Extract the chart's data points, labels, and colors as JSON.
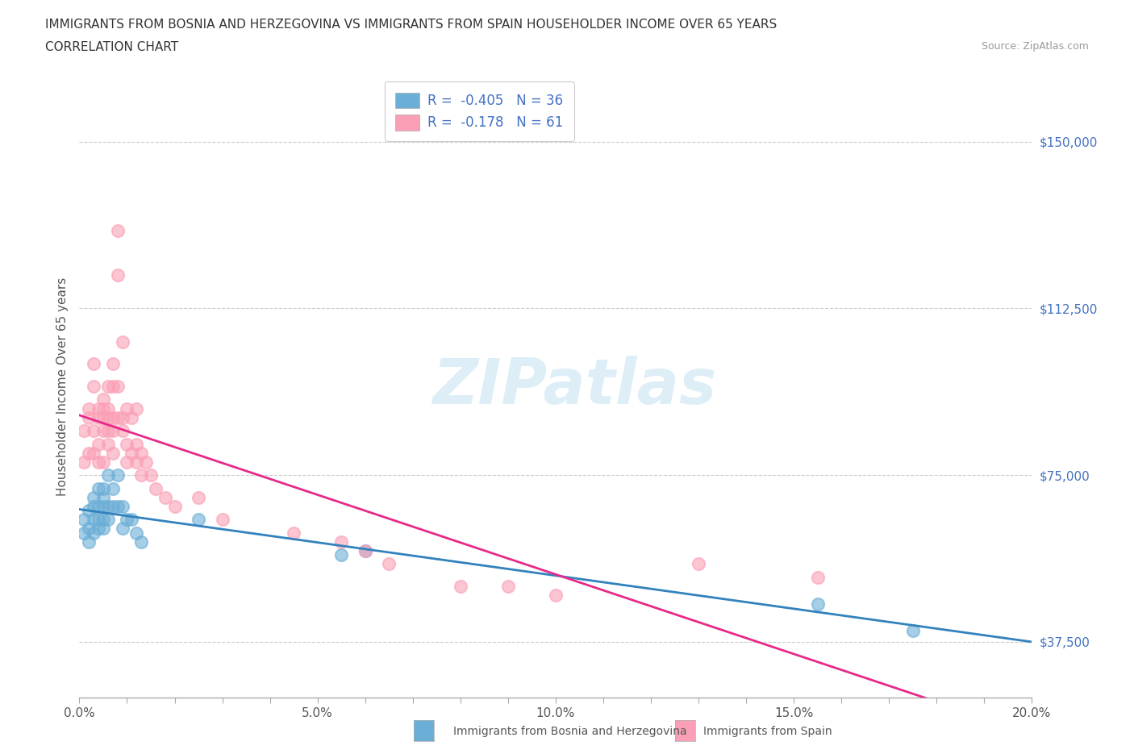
{
  "title_line1": "IMMIGRANTS FROM BOSNIA AND HERZEGOVINA VS IMMIGRANTS FROM SPAIN HOUSEHOLDER INCOME OVER 65 YEARS",
  "title_line2": "CORRELATION CHART",
  "source_text": "Source: ZipAtlas.com",
  "ylabel": "Householder Income Over 65 years",
  "xlim": [
    0.0,
    0.2
  ],
  "ylim": [
    25000,
    165000
  ],
  "xtick_labels": [
    "0.0%",
    "",
    "",
    "",
    "",
    "5.0%",
    "",
    "",
    "",
    "",
    "10.0%",
    "",
    "",
    "",
    "",
    "15.0%",
    "",
    "",
    "",
    "",
    "20.0%"
  ],
  "xtick_vals": [
    0.0,
    0.01,
    0.02,
    0.03,
    0.04,
    0.05,
    0.06,
    0.07,
    0.08,
    0.09,
    0.1,
    0.11,
    0.12,
    0.13,
    0.14,
    0.15,
    0.16,
    0.17,
    0.18,
    0.19,
    0.2
  ],
  "ytick_vals": [
    37500,
    75000,
    112500,
    150000
  ],
  "ytick_labels": [
    "$37,500",
    "$75,000",
    "$112,500",
    "$150,000"
  ],
  "watermark": "ZIPatlas",
  "bosnia_color": "#6baed6",
  "spain_color": "#fa9fb5",
  "bosnia_line_color": "#3182bd",
  "spain_line_color": "#e7298a",
  "legend_bosnia_label": "R =  -0.405   N = 36",
  "legend_spain_label": "R =  -0.178   N = 61",
  "scatter_bosnia_x": [
    0.001,
    0.001,
    0.002,
    0.002,
    0.002,
    0.003,
    0.003,
    0.003,
    0.003,
    0.004,
    0.004,
    0.004,
    0.004,
    0.005,
    0.005,
    0.005,
    0.005,
    0.005,
    0.006,
    0.006,
    0.006,
    0.007,
    0.007,
    0.008,
    0.008,
    0.009,
    0.009,
    0.01,
    0.011,
    0.012,
    0.013,
    0.025,
    0.055,
    0.06,
    0.155,
    0.175
  ],
  "scatter_bosnia_y": [
    65000,
    62000,
    60000,
    67000,
    63000,
    65000,
    68000,
    62000,
    70000,
    65000,
    68000,
    63000,
    72000,
    65000,
    70000,
    68000,
    72000,
    63000,
    65000,
    68000,
    75000,
    68000,
    72000,
    75000,
    68000,
    68000,
    63000,
    65000,
    65000,
    62000,
    60000,
    65000,
    57000,
    58000,
    46000,
    40000
  ],
  "scatter_spain_x": [
    0.001,
    0.001,
    0.002,
    0.002,
    0.002,
    0.003,
    0.003,
    0.003,
    0.003,
    0.004,
    0.004,
    0.004,
    0.004,
    0.005,
    0.005,
    0.005,
    0.005,
    0.005,
    0.006,
    0.006,
    0.006,
    0.006,
    0.006,
    0.007,
    0.007,
    0.007,
    0.007,
    0.007,
    0.008,
    0.008,
    0.008,
    0.008,
    0.009,
    0.009,
    0.009,
    0.01,
    0.01,
    0.01,
    0.011,
    0.011,
    0.012,
    0.012,
    0.012,
    0.013,
    0.013,
    0.014,
    0.015,
    0.016,
    0.018,
    0.02,
    0.025,
    0.03,
    0.045,
    0.055,
    0.06,
    0.065,
    0.08,
    0.09,
    0.1,
    0.13,
    0.155
  ],
  "scatter_spain_y": [
    78000,
    85000,
    80000,
    90000,
    88000,
    95000,
    85000,
    100000,
    80000,
    90000,
    88000,
    82000,
    78000,
    90000,
    85000,
    92000,
    88000,
    78000,
    95000,
    88000,
    82000,
    90000,
    85000,
    95000,
    88000,
    80000,
    100000,
    85000,
    95000,
    88000,
    130000,
    120000,
    105000,
    88000,
    85000,
    90000,
    82000,
    78000,
    88000,
    80000,
    82000,
    78000,
    90000,
    80000,
    75000,
    78000,
    75000,
    72000,
    70000,
    68000,
    70000,
    65000,
    62000,
    60000,
    58000,
    55000,
    50000,
    50000,
    48000,
    55000,
    52000
  ]
}
